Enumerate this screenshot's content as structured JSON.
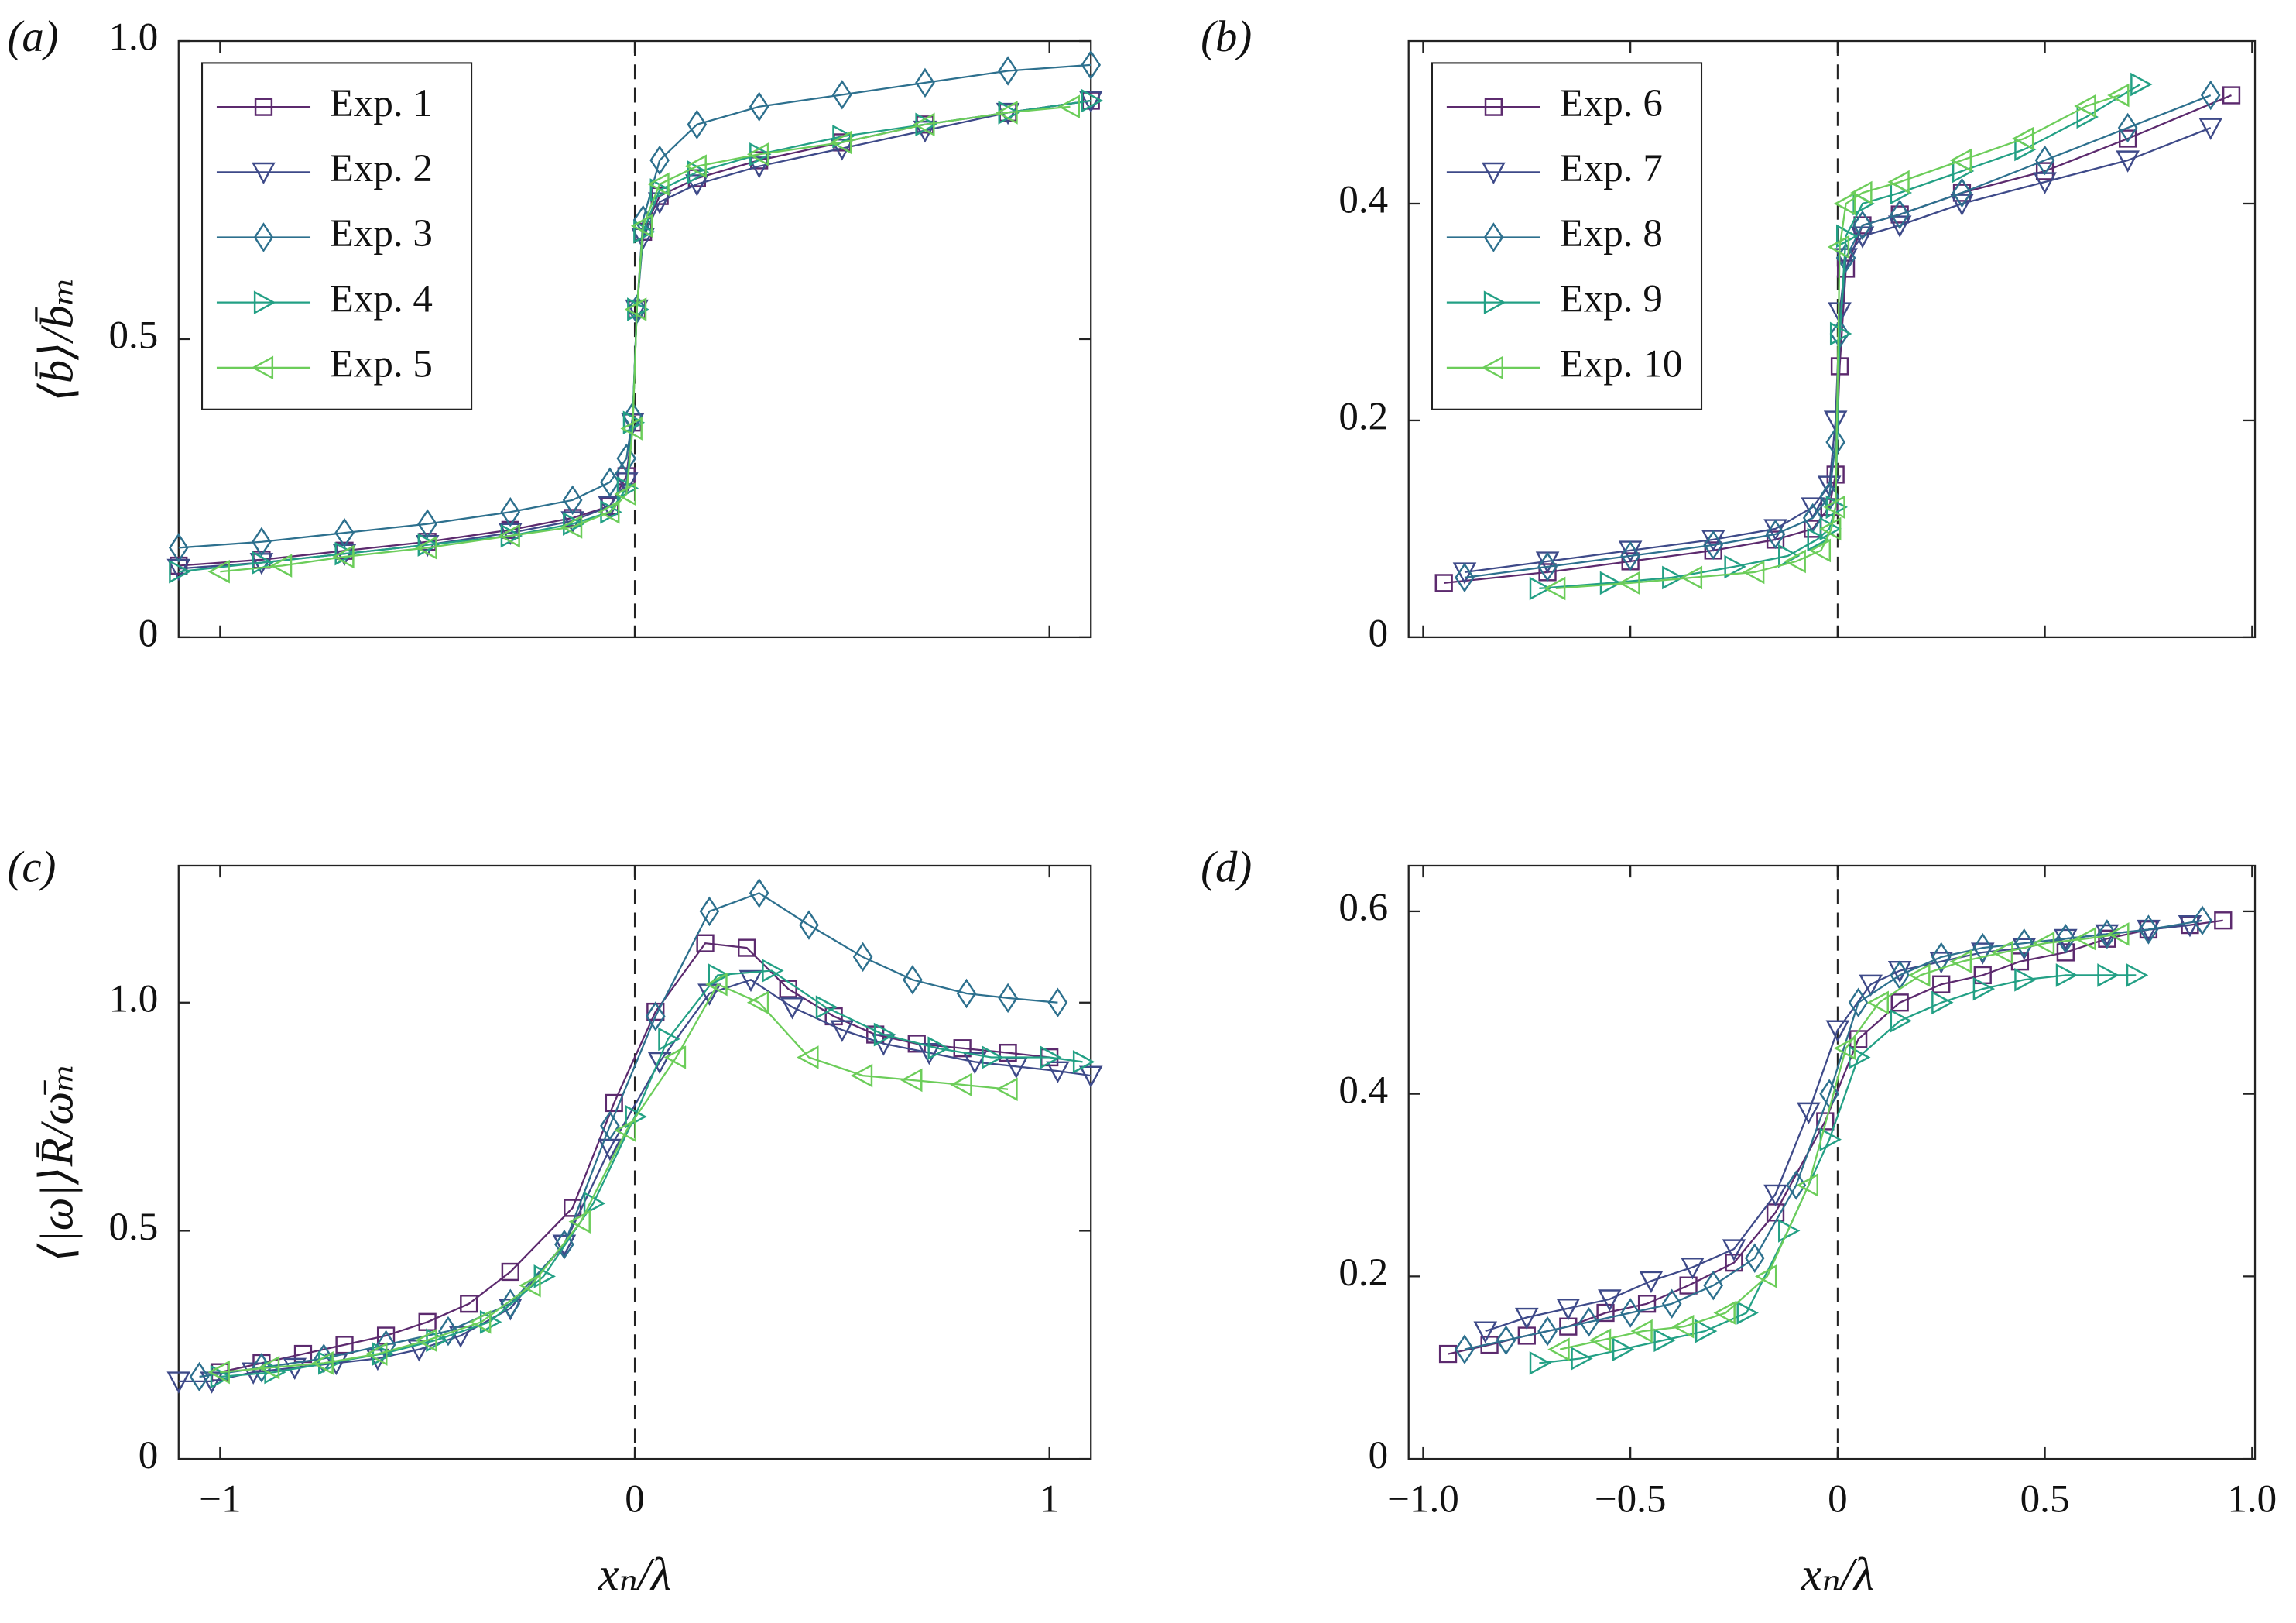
{
  "chart_data": [
    {
      "type": "line",
      "panel_label": "(a)",
      "ylabel": "⟨b̄⟩/b̄ₘ",
      "xlim": [
        -1.1,
        1.1
      ],
      "ylim": [
        0,
        1.0
      ],
      "xticks": [
        -1,
        0,
        1
      ],
      "yticks": [
        0,
        0.5,
        {
          "value": 1,
          "label": "1.0"
        }
      ],
      "vline": 0,
      "legend": "upper left",
      "series": [
        {
          "name": "Exp. 1",
          "color": "#5c2a6e",
          "marker": "square",
          "x": [
            -1.1,
            -0.9,
            -0.7,
            -0.5,
            -0.3,
            -0.15,
            -0.06,
            -0.02,
            -0.005,
            0.005,
            0.02,
            0.06,
            0.15,
            0.3,
            0.5,
            0.7,
            0.9,
            1.1
          ],
          "values": [
            0.12,
            0.13,
            0.145,
            0.16,
            0.18,
            0.2,
            0.22,
            0.27,
            0.36,
            0.55,
            0.68,
            0.74,
            0.77,
            0.8,
            0.83,
            0.86,
            0.88,
            0.9
          ]
        },
        {
          "name": "Exp. 2",
          "color": "#3e4a89",
          "marker": "triangle-down",
          "x": [
            -1.1,
            -0.9,
            -0.7,
            -0.5,
            -0.3,
            -0.15,
            -0.06,
            -0.02,
            -0.005,
            0.005,
            0.02,
            0.06,
            0.15,
            0.3,
            0.5,
            0.7,
            0.9,
            1.1
          ],
          "values": [
            0.115,
            0.125,
            0.14,
            0.155,
            0.175,
            0.195,
            0.22,
            0.26,
            0.36,
            0.55,
            0.67,
            0.73,
            0.76,
            0.79,
            0.82,
            0.85,
            0.88,
            0.9
          ]
        },
        {
          "name": "Exp. 3",
          "color": "#2d708e",
          "marker": "diamond",
          "x": [
            -1.1,
            -0.9,
            -0.7,
            -0.5,
            -0.3,
            -0.15,
            -0.06,
            -0.02,
            -0.005,
            0.005,
            0.02,
            0.06,
            0.15,
            0.3,
            0.5,
            0.7,
            0.9,
            1.1
          ],
          "values": [
            0.15,
            0.16,
            0.175,
            0.19,
            0.21,
            0.23,
            0.26,
            0.3,
            0.37,
            0.55,
            0.7,
            0.8,
            0.86,
            0.89,
            0.91,
            0.93,
            0.95,
            0.96
          ]
        },
        {
          "name": "Exp. 4",
          "color": "#23a085",
          "marker": "triangle-right",
          "x": [
            -1.1,
            -0.9,
            -0.7,
            -0.5,
            -0.3,
            -0.15,
            -0.06,
            -0.02,
            -0.005,
            0.005,
            0.02,
            0.06,
            0.15,
            0.3,
            0.5,
            0.7,
            0.9,
            1.1
          ],
          "values": [
            0.11,
            0.125,
            0.14,
            0.155,
            0.17,
            0.19,
            0.21,
            0.25,
            0.36,
            0.55,
            0.68,
            0.75,
            0.78,
            0.81,
            0.84,
            0.86,
            0.88,
            0.9
          ]
        },
        {
          "name": "Exp. 5",
          "color": "#6ccd5a",
          "marker": "triangle-left",
          "x": [
            -1.0,
            -0.85,
            -0.7,
            -0.5,
            -0.3,
            -0.15,
            -0.06,
            -0.02,
            -0.005,
            0.005,
            0.02,
            0.06,
            0.15,
            0.3,
            0.5,
            0.7,
            0.9,
            1.05
          ],
          "values": [
            0.11,
            0.12,
            0.135,
            0.15,
            0.17,
            0.185,
            0.21,
            0.24,
            0.35,
            0.55,
            0.69,
            0.76,
            0.79,
            0.81,
            0.83,
            0.86,
            0.88,
            0.89
          ]
        }
      ]
    },
    {
      "type": "line",
      "panel_label": "(b)",
      "xlim": [
        -1.035,
        1.007
      ],
      "ylim": [
        0,
        0.55
      ],
      "xticks": [
        -1,
        -0.5,
        0,
        0.5,
        1
      ],
      "yticks": [
        0,
        0.2,
        0.4
      ],
      "vline": 0,
      "legend": "upper left",
      "series": [
        {
          "name": "Exp. 6",
          "color": "#5c2a6e",
          "marker": "square",
          "x": [
            -0.95,
            -0.7,
            -0.5,
            -0.3,
            -0.15,
            -0.06,
            -0.02,
            -0.005,
            0.005,
            0.02,
            0.06,
            0.15,
            0.3,
            0.5,
            0.7,
            0.95
          ],
          "values": [
            0.05,
            0.06,
            0.07,
            0.08,
            0.09,
            0.1,
            0.12,
            0.15,
            0.25,
            0.34,
            0.38,
            0.39,
            0.41,
            0.43,
            0.46,
            0.5
          ]
        },
        {
          "name": "Exp. 7",
          "color": "#3e4a89",
          "marker": "triangle-down",
          "x": [
            -0.9,
            -0.7,
            -0.5,
            -0.3,
            -0.15,
            -0.06,
            -0.02,
            -0.005,
            0.005,
            0.02,
            0.06,
            0.15,
            0.3,
            0.5,
            0.7,
            0.9
          ],
          "values": [
            0.06,
            0.07,
            0.08,
            0.09,
            0.1,
            0.12,
            0.14,
            0.2,
            0.3,
            0.35,
            0.37,
            0.38,
            0.4,
            0.42,
            0.44,
            0.47
          ]
        },
        {
          "name": "Exp. 8",
          "color": "#2d708e",
          "marker": "diamond",
          "x": [
            -0.9,
            -0.7,
            -0.5,
            -0.3,
            -0.15,
            -0.06,
            -0.02,
            -0.005,
            0.005,
            0.02,
            0.06,
            0.15,
            0.3,
            0.5,
            0.7,
            0.9
          ],
          "values": [
            0.055,
            0.065,
            0.075,
            0.085,
            0.095,
            0.11,
            0.13,
            0.18,
            0.28,
            0.35,
            0.38,
            0.39,
            0.41,
            0.44,
            0.47,
            0.5
          ]
        },
        {
          "name": "Exp. 9",
          "color": "#23a085",
          "marker": "triangle-right",
          "x": [
            -0.72,
            -0.55,
            -0.4,
            -0.25,
            -0.12,
            -0.05,
            -0.02,
            -0.005,
            0.005,
            0.02,
            0.06,
            0.15,
            0.3,
            0.45,
            0.6,
            0.73
          ],
          "values": [
            0.045,
            0.05,
            0.055,
            0.065,
            0.075,
            0.09,
            0.1,
            0.12,
            0.28,
            0.37,
            0.4,
            0.41,
            0.43,
            0.45,
            0.48,
            0.51
          ]
        },
        {
          "name": "Exp. 10",
          "color": "#6ccd5a",
          "marker": "triangle-left",
          "x": [
            -0.68,
            -0.5,
            -0.35,
            -0.2,
            -0.1,
            -0.04,
            -0.015,
            -0.005,
            0.005,
            0.02,
            0.06,
            0.15,
            0.3,
            0.45,
            0.6,
            0.68
          ],
          "values": [
            0.045,
            0.05,
            0.055,
            0.06,
            0.07,
            0.08,
            0.1,
            0.12,
            0.36,
            0.4,
            0.41,
            0.42,
            0.44,
            0.46,
            0.49,
            0.5
          ]
        }
      ]
    },
    {
      "type": "line",
      "panel_label": "(c)",
      "ylabel": "⟨|ω|⟩R̄/ω̄ₘ",
      "xlabel": "xₙ/λ",
      "xlim": [
        -1.1,
        1.1
      ],
      "ylim": [
        0,
        1.3
      ],
      "xticks": [
        {
          "value": -1,
          "label": "−1"
        },
        0,
        1
      ],
      "yticks": [
        0,
        0.5,
        {
          "value": 1,
          "label": "1.0"
        }
      ],
      "vline": 0,
      "series": [
        {
          "color": "#5c2a6e",
          "marker": "square",
          "x": [
            -1.0,
            -0.9,
            -0.8,
            -0.7,
            -0.6,
            -0.5,
            -0.4,
            -0.3,
            -0.15,
            -0.05,
            0.05,
            0.17,
            0.27,
            0.37,
            0.48,
            0.58,
            0.68,
            0.79,
            0.9,
            1.0
          ],
          "values": [
            0.19,
            0.21,
            0.23,
            0.25,
            0.27,
            0.3,
            0.34,
            0.41,
            0.55,
            0.78,
            0.98,
            1.13,
            1.12,
            1.03,
            0.97,
            0.93,
            0.91,
            0.9,
            0.89,
            0.88
          ]
        },
        {
          "color": "#3e4a89",
          "marker": "triangle-down",
          "x": [
            -1.1,
            -1.02,
            -0.92,
            -0.82,
            -0.72,
            -0.62,
            -0.52,
            -0.42,
            -0.3,
            -0.17,
            -0.06,
            0.06,
            0.18,
            0.28,
            0.38,
            0.5,
            0.6,
            0.71,
            0.82,
            0.92,
            1.02,
            1.1
          ],
          "values": [
            0.17,
            0.17,
            0.19,
            0.2,
            0.21,
            0.22,
            0.24,
            0.27,
            0.33,
            0.47,
            0.68,
            0.87,
            1.02,
            1.05,
            0.99,
            0.94,
            0.91,
            0.89,
            0.87,
            0.86,
            0.85,
            0.84
          ]
        },
        {
          "color": "#2d708e",
          "marker": "diamond",
          "x": [
            -1.05,
            -0.9,
            -0.75,
            -0.6,
            -0.45,
            -0.3,
            -0.17,
            -0.06,
            0.05,
            0.18,
            0.3,
            0.42,
            0.55,
            0.67,
            0.8,
            0.9,
            1.02
          ],
          "values": [
            0.18,
            0.2,
            0.22,
            0.25,
            0.28,
            0.34,
            0.47,
            0.73,
            0.97,
            1.2,
            1.24,
            1.17,
            1.1,
            1.05,
            1.02,
            1.01,
            1.0
          ]
        },
        {
          "color": "#23a085",
          "marker": "triangle-right",
          "x": [
            -1.0,
            -0.87,
            -0.74,
            -0.61,
            -0.48,
            -0.35,
            -0.22,
            -0.1,
            0.0,
            0.08,
            0.2,
            0.33,
            0.46,
            0.6,
            0.73,
            0.86,
            1.0,
            1.08
          ],
          "values": [
            0.18,
            0.19,
            0.21,
            0.23,
            0.26,
            0.3,
            0.4,
            0.56,
            0.75,
            0.92,
            1.06,
            1.07,
            0.99,
            0.93,
            0.9,
            0.88,
            0.88,
            0.87
          ]
        },
        {
          "color": "#6ccd5a",
          "marker": "triangle-left",
          "x": [
            -1.0,
            -0.88,
            -0.75,
            -0.62,
            -0.5,
            -0.37,
            -0.25,
            -0.13,
            -0.02,
            0.1,
            0.2,
            0.3,
            0.42,
            0.55,
            0.67,
            0.79,
            0.9
          ],
          "values": [
            0.19,
            0.2,
            0.21,
            0.23,
            0.26,
            0.3,
            0.38,
            0.52,
            0.72,
            0.88,
            1.04,
            1.0,
            0.88,
            0.84,
            0.83,
            0.82,
            0.81
          ]
        }
      ]
    },
    {
      "type": "line",
      "panel_label": "(d)",
      "xlabel": "xₙ/λ",
      "xlim": [
        -1.035,
        1.007
      ],
      "ylim": [
        0,
        0.65
      ],
      "xticks": [
        {
          "value": -1,
          "label": "−1.0"
        },
        {
          "value": -0.5,
          "label": "−0.5"
        },
        0,
        0.5,
        {
          "value": 1,
          "label": "1.0"
        }
      ],
      "yticks": [
        0,
        0.2,
        0.4,
        0.6
      ],
      "vline": 0,
      "series": [
        {
          "color": "#5c2a6e",
          "marker": "square",
          "x": [
            -0.94,
            -0.84,
            -0.75,
            -0.65,
            -0.56,
            -0.46,
            -0.36,
            -0.25,
            -0.15,
            -0.03,
            0.05,
            0.15,
            0.25,
            0.35,
            0.44,
            0.55,
            0.65,
            0.75,
            0.85,
            0.93
          ],
          "values": [
            0.115,
            0.125,
            0.135,
            0.145,
            0.16,
            0.17,
            0.19,
            0.215,
            0.27,
            0.37,
            0.46,
            0.5,
            0.52,
            0.53,
            0.545,
            0.555,
            0.57,
            0.58,
            0.585,
            0.59
          ]
        },
        {
          "color": "#3e4a89",
          "marker": "triangle-down",
          "x": [
            -0.85,
            -0.75,
            -0.65,
            -0.55,
            -0.45,
            -0.35,
            -0.25,
            -0.15,
            -0.07,
            0.0,
            0.08,
            0.15,
            0.25,
            0.35,
            0.45,
            0.55,
            0.65,
            0.75,
            0.85
          ],
          "values": [
            0.14,
            0.155,
            0.165,
            0.175,
            0.195,
            0.21,
            0.23,
            0.29,
            0.38,
            0.47,
            0.52,
            0.535,
            0.545,
            0.555,
            0.56,
            0.57,
            0.575,
            0.58,
            0.585
          ]
        },
        {
          "color": "#2d708e",
          "marker": "diamond",
          "x": [
            -0.9,
            -0.8,
            -0.7,
            -0.6,
            -0.5,
            -0.4,
            -0.3,
            -0.2,
            -0.1,
            -0.02,
            0.05,
            0.15,
            0.25,
            0.35,
            0.45,
            0.55,
            0.65,
            0.75,
            0.88
          ],
          "values": [
            0.12,
            0.13,
            0.14,
            0.15,
            0.16,
            0.17,
            0.19,
            0.22,
            0.3,
            0.4,
            0.5,
            0.53,
            0.55,
            0.56,
            0.565,
            0.57,
            0.575,
            0.58,
            0.59
          ]
        },
        {
          "color": "#23a085",
          "marker": "triangle-right",
          "x": [
            -0.72,
            -0.62,
            -0.52,
            -0.42,
            -0.32,
            -0.22,
            -0.12,
            -0.02,
            0.05,
            0.15,
            0.25,
            0.35,
            0.45,
            0.55,
            0.65,
            0.72
          ],
          "values": [
            0.105,
            0.11,
            0.12,
            0.13,
            0.14,
            0.16,
            0.25,
            0.35,
            0.44,
            0.48,
            0.5,
            0.515,
            0.525,
            0.53,
            0.53,
            0.53
          ]
        },
        {
          "color": "#6ccd5a",
          "marker": "triangle-left",
          "x": [
            -0.67,
            -0.57,
            -0.47,
            -0.37,
            -0.27,
            -0.17,
            -0.07,
            0.02,
            0.1,
            0.2,
            0.3,
            0.4,
            0.5,
            0.6,
            0.68
          ],
          "values": [
            0.12,
            0.13,
            0.14,
            0.145,
            0.16,
            0.2,
            0.3,
            0.45,
            0.5,
            0.53,
            0.545,
            0.555,
            0.565,
            0.57,
            0.575
          ]
        }
      ]
    }
  ]
}
